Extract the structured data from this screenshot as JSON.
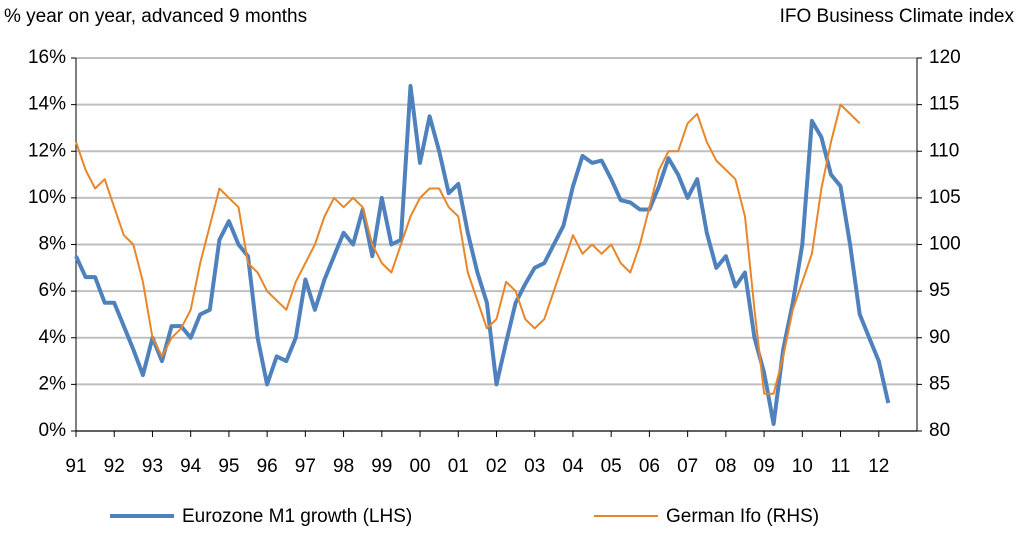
{
  "chart_data": {
    "type": "line",
    "left_axis_title": "% year on year, advanced 9 months",
    "right_axis_title": "IFO  Business Climate index",
    "x": [
      1991,
      1991.25,
      1991.5,
      1991.75,
      1992,
      1992.25,
      1992.5,
      1992.75,
      1993,
      1993.25,
      1993.5,
      1993.75,
      1994,
      1994.25,
      1994.5,
      1994.75,
      1995,
      1995.25,
      1995.5,
      1995.75,
      1996,
      1996.25,
      1996.5,
      1996.75,
      1997,
      1997.25,
      1997.5,
      1997.75,
      1998,
      1998.25,
      1998.5,
      1998.75,
      1999,
      1999.25,
      1999.5,
      1999.75,
      2000,
      2000.25,
      2000.5,
      2000.75,
      2001,
      2001.25,
      2001.5,
      2001.75,
      2002,
      2002.25,
      2002.5,
      2002.75,
      2003,
      2003.25,
      2003.5,
      2003.75,
      2004,
      2004.25,
      2004.5,
      2004.75,
      2005,
      2005.25,
      2005.5,
      2005.75,
      2006,
      2006.25,
      2006.5,
      2006.75,
      2007,
      2007.25,
      2007.5,
      2007.75,
      2008,
      2008.25,
      2008.5,
      2008.75,
      2009,
      2009.25,
      2009.5,
      2009.75,
      2010,
      2010.25,
      2010.5,
      2010.75,
      2011,
      2011.25,
      2011.5,
      2011.75,
      2012,
      2012.25
    ],
    "series": [
      {
        "name": "Eurozone M1 growth (LHS)",
        "color": "#4f81bd",
        "axis": "y",
        "width": 4,
        "values": [
          7.5,
          6.6,
          6.6,
          5.5,
          5.5,
          4.5,
          3.5,
          2.4,
          4.0,
          3.0,
          4.5,
          4.5,
          4.0,
          5.0,
          5.2,
          8.2,
          9.0,
          8.0,
          7.5,
          4.0,
          2.0,
          3.2,
          3.0,
          4.0,
          6.5,
          5.2,
          6.5,
          7.5,
          8.5,
          8.0,
          9.5,
          7.5,
          10.0,
          8.0,
          8.2,
          14.8,
          11.5,
          13.5,
          12.0,
          10.2,
          10.6,
          8.5,
          6.8,
          5.5,
          2.0,
          3.8,
          5.5,
          6.3,
          7.0,
          7.2,
          8.0,
          8.8,
          10.5,
          11.8,
          11.5,
          11.6,
          10.8,
          9.9,
          9.8,
          9.5,
          9.5,
          10.5,
          11.7,
          11.0,
          10.0,
          10.8,
          8.5,
          7.0,
          7.5,
          6.2,
          6.8,
          4.0,
          2.5,
          0.3,
          3.5,
          5.5,
          8.0,
          13.3,
          12.6,
          11.0,
          10.5,
          8.0,
          5.0,
          4.0,
          3.0,
          1.2
        ]
      },
      {
        "name": "German Ifo (RHS)",
        "color": "#e8862a",
        "axis": "y2",
        "width": 2,
        "values": [
          111,
          108,
          106,
          107,
          104,
          101,
          100,
          96,
          90,
          88,
          90,
          91,
          93,
          98,
          102,
          106,
          105,
          104,
          98,
          97,
          95,
          94,
          93,
          96,
          98,
          100,
          103,
          105,
          104,
          105,
          104,
          100,
          98,
          97,
          100,
          103,
          105,
          106,
          106,
          104,
          103,
          97,
          94,
          91,
          92,
          96,
          95,
          92,
          91,
          92,
          95,
          98,
          101,
          99,
          100,
          99,
          100,
          98,
          97,
          100,
          104,
          108,
          110,
          110,
          113,
          114,
          111,
          109,
          108,
          107,
          103,
          93,
          84,
          84,
          88,
          93,
          96,
          99,
          106,
          111,
          115,
          114,
          113,
          null,
          null,
          null
        ]
      }
    ],
    "xlim": [
      1991,
      2013
    ],
    "xticks": [
      {
        "value": 1991,
        "label": "91"
      },
      {
        "value": 1992,
        "label": "92"
      },
      {
        "value": 1993,
        "label": "93"
      },
      {
        "value": 1994,
        "label": "94"
      },
      {
        "value": 1995,
        "label": "95"
      },
      {
        "value": 1996,
        "label": "96"
      },
      {
        "value": 1997,
        "label": "97"
      },
      {
        "value": 1998,
        "label": "98"
      },
      {
        "value": 1999,
        "label": "99"
      },
      {
        "value": 2000,
        "label": "00"
      },
      {
        "value": 2001,
        "label": "01"
      },
      {
        "value": 2002,
        "label": "02"
      },
      {
        "value": 2003,
        "label": "03"
      },
      {
        "value": 2004,
        "label": "04"
      },
      {
        "value": 2005,
        "label": "05"
      },
      {
        "value": 2006,
        "label": "06"
      },
      {
        "value": 2007,
        "label": "07"
      },
      {
        "value": 2008,
        "label": "08"
      },
      {
        "value": 2009,
        "label": "09"
      },
      {
        "value": 2010,
        "label": "10"
      },
      {
        "value": 2011,
        "label": "11"
      },
      {
        "value": 2012,
        "label": "12"
      }
    ],
    "ylim": [
      0,
      16
    ],
    "yticks": [
      {
        "value": 0,
        "label": "0%"
      },
      {
        "value": 2,
        "label": "2%"
      },
      {
        "value": 4,
        "label": "4%"
      },
      {
        "value": 6,
        "label": "6%"
      },
      {
        "value": 8,
        "label": "8%"
      },
      {
        "value": 10,
        "label": "10%"
      },
      {
        "value": 12,
        "label": "12%"
      },
      {
        "value": 14,
        "label": "14%"
      },
      {
        "value": 16,
        "label": "16%"
      }
    ],
    "y2lim": [
      80,
      120
    ],
    "y2ticks": [
      80,
      85,
      90,
      95,
      100,
      105,
      110,
      115,
      120
    ],
    "grid": true,
    "legend": "bottom"
  }
}
